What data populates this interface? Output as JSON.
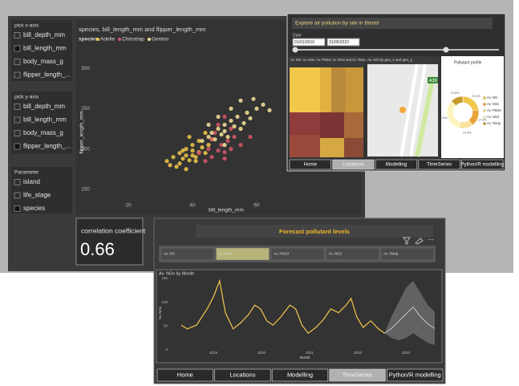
{
  "sidebar": [
    {
      "title": "pick x-axis",
      "items": [
        "bill_depth_mm",
        "bill_length_mm",
        "body_mass_g",
        "flipper_length_..."
      ],
      "selected": 1
    },
    {
      "title": "pick y-axis",
      "items": [
        "bill_depth_mm",
        "bill_length_mm",
        "body_mass_g",
        "flipper_length_..."
      ],
      "selected": 3
    },
    {
      "title": "Parameter",
      "items": [
        "island",
        "life_stage",
        "species"
      ],
      "selected": 2
    }
  ],
  "correlation": {
    "label": "correlation coefficient",
    "value": "0.66"
  },
  "chart_data": [
    {
      "type": "scatter",
      "title": "species, bill_length_mm and flipper_length_mm",
      "legend_title": "species",
      "xlabel": "bill_length_mm",
      "ylabel": "flipper_length_mm",
      "xlim": [
        10,
        90
      ],
      "ylim": [
        130,
        320
      ],
      "xticks": [
        20,
        40,
        60
      ],
      "yticks": [
        150,
        200,
        250,
        300
      ],
      "series": [
        {
          "name": "Adelie",
          "color": "#f2c84b",
          "x": [
            32,
            34,
            35,
            36,
            37,
            38,
            38,
            39,
            40,
            40,
            41,
            42,
            42,
            43,
            44,
            45,
            36,
            39,
            41,
            33,
            46,
            38,
            44,
            40,
            37
          ],
          "values": [
            185,
            190,
            178,
            195,
            188,
            192,
            200,
            186,
            198,
            205,
            190,
            196,
            210,
            202,
            195,
            205,
            182,
            215,
            185,
            180,
            212,
            175,
            220,
            192,
            198
          ]
        },
        {
          "name": "Chinstrap",
          "color": "#d9566b",
          "x": [
            42,
            45,
            46,
            48,
            49,
            50,
            51,
            52,
            53,
            50,
            47,
            55,
            44,
            48,
            52,
            58,
            46,
            50
          ],
          "values": [
            195,
            200,
            190,
            198,
            205,
            196,
            210,
            200,
            215,
            188,
            220,
            205,
            185,
            230,
            225,
            215,
            212,
            240
          ]
        },
        {
          "name": "Gentoo",
          "color": "#f7e39a",
          "x": [
            43,
            45,
            46,
            47,
            48,
            49,
            50,
            50,
            51,
            52,
            53,
            54,
            55,
            56,
            57,
            58,
            60,
            62,
            48,
            52,
            55,
            45,
            59,
            64,
            50
          ],
          "values": [
            210,
            215,
            220,
            212,
            225,
            218,
            230,
            222,
            215,
            235,
            228,
            240,
            225,
            232,
            245,
            238,
            250,
            255,
            240,
            250,
            260,
            230,
            262,
            248,
            205
          ]
        }
      ]
    },
    {
      "type": "line",
      "title": "Av. NOx by Month",
      "xlabel": "Month",
      "ylabel": "Av. NOx",
      "xlim": [
        2018.1,
        2023.7
      ],
      "ylim": [
        0,
        165
      ],
      "xticks": [
        2019,
        2020,
        2021,
        2022,
        2023
      ],
      "yticks": [
        0,
        50,
        100,
        150
      ],
      "series": [
        {
          "name": "Av. NOx",
          "color": "#f2c84b",
          "x": [
            2018.33,
            2018.46,
            2018.65,
            2018.87,
            2019.0,
            2019.13,
            2019.25,
            2019.41,
            2019.57,
            2019.73,
            2019.86,
            2019.98,
            2020.11,
            2020.24,
            2020.4,
            2020.59,
            2020.71,
            2020.84,
            2020.97,
            2021.13,
            2021.29,
            2021.44,
            2021.6,
            2021.76,
            2021.86,
            2021.98,
            2022.11,
            2022.27,
            2022.43,
            2022.56
          ],
          "values": [
            52,
            44,
            52,
            86,
            111,
            145,
            78,
            44,
            57,
            74,
            94,
            86,
            61,
            52,
            69,
            94,
            86,
            52,
            35,
            47,
            64,
            86,
            78,
            94,
            108,
            69,
            47,
            61,
            44,
            35
          ]
        }
      ],
      "forecast": {
        "color": "#e0e0e0",
        "band_color": "#6e6e6e",
        "x": [
          2022.56,
          2022.7,
          2022.85,
          2023.0,
          2023.15,
          2023.3,
          2023.45,
          2023.6
        ],
        "values": [
          35,
          45,
          60,
          75,
          90,
          70,
          55,
          45
        ],
        "lower": [
          35,
          25,
          20,
          25,
          35,
          25,
          15,
          10
        ],
        "upper": [
          35,
          70,
          100,
          130,
          145,
          120,
          95,
          80
        ]
      }
    },
    {
      "type": "pie",
      "title": "Pollutant profile",
      "categories": [
        "Av. NO",
        "Av. NOx",
        "Av. PM10",
        "Av. NO2",
        "Av. Temp"
      ],
      "values": [
        22.3,
        17.3,
        14.3,
        33.5,
        12.6
      ],
      "value_labels": [
        "22.3%",
        "17.3%",
        "14.3%",
        "33.5%",
        "12.6%"
      ],
      "colors": [
        "#f2c84b",
        "#e8a33a",
        "#f7e39a",
        "#fff4c0",
        "#c79a2e"
      ]
    }
  ],
  "explore": {
    "title": "Explore air pollution by site in Bristol",
    "date_label": "Date",
    "start": "01/01/2010",
    "end": "31/05/2022",
    "treemap_title": "Av. NO, Av. NOx, Av. PM10, Av. NO2 and Av. Temp by Location",
    "map_title": "Av. NO by geo_x and geo_y",
    "map_label": "A38"
  },
  "forecast_panel": {
    "title": "Forecast pollutant levels",
    "options": [
      "Av. NO",
      "Av. NOx",
      "Av. PM10",
      "Av. NO2",
      "Av. Temp"
    ],
    "selected": 1
  },
  "tabs_top": {
    "items": [
      "Home",
      "Locations",
      "Modelling",
      "TimeSeries",
      "Python/R modelling"
    ],
    "selected": 1
  },
  "tabs_bottom": {
    "items": [
      "Home",
      "Locations",
      "Modelling",
      "TimeSeries",
      "Python/R modelling"
    ],
    "selected": 3
  }
}
